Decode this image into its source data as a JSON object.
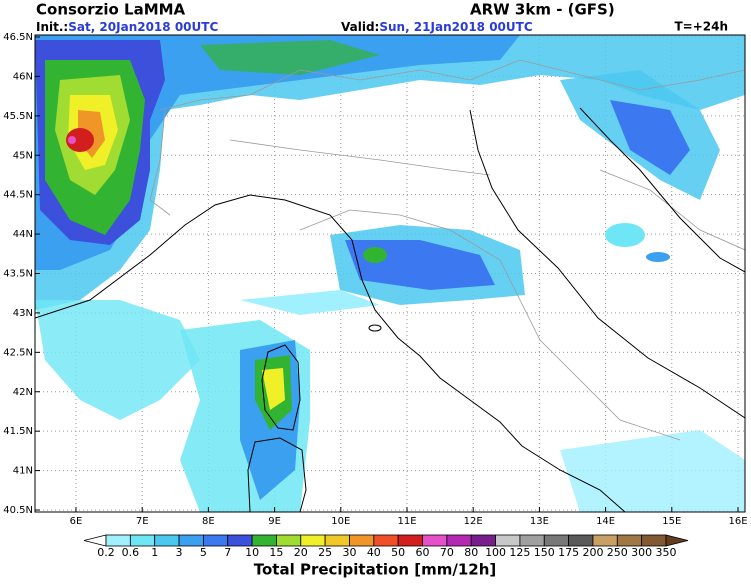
{
  "header": {
    "title": "Consorzio LaMMA",
    "model": "ARW 3km - (GFS)",
    "init_label": "Init.:",
    "init_time": "Sat, 20Jan2018 00UTC",
    "valid_label": "Valid:",
    "valid_time": "Sun, 21Jan2018 00UTC",
    "lead_time": "T=+24h"
  },
  "map": {
    "lon_ticks": [
      "6E",
      "7E",
      "8E",
      "9E",
      "10E",
      "11E",
      "12E",
      "13E",
      "14E",
      "15E",
      "16E"
    ],
    "lat_ticks": [
      "46.5N",
      "46N",
      "45.5N",
      "45N",
      "44.5N",
      "44N",
      "43.5N",
      "43N",
      "42.5N",
      "42N",
      "41.5N",
      "41N",
      "40.5N"
    ]
  },
  "colorbar": {
    "labels": [
      0.2,
      0.6,
      1,
      3,
      5,
      7,
      10,
      15,
      20,
      25,
      30,
      40,
      50,
      60,
      70,
      80,
      100,
      125,
      150,
      175,
      200,
      250,
      300,
      350
    ],
    "colors": [
      "#ffffff",
      "#a0f0ff",
      "#6ee6f5",
      "#4bc8f0",
      "#3ca0f0",
      "#3c78f0",
      "#3c50dc",
      "#32b432",
      "#a0dc32",
      "#f0f028",
      "#f0c828",
      "#f09628",
      "#f05028",
      "#d21e1e",
      "#e650c8",
      "#b428b4",
      "#781e8c",
      "#c8c8c8",
      "#a0a0a0",
      "#787878",
      "#5a5a5a",
      "#c8a064",
      "#a07846",
      "#825a32",
      "#643c1e"
    ],
    "title": "Total Precipitation [mm/12h]"
  }
}
